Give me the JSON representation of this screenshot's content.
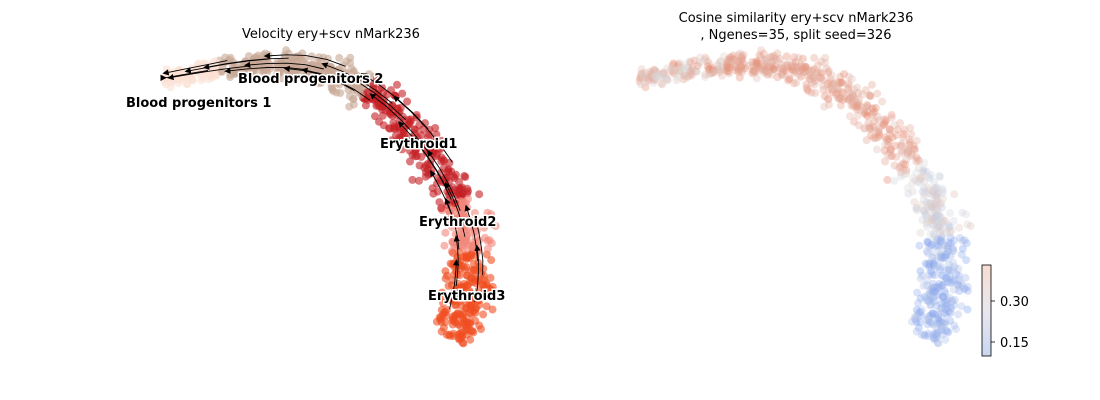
{
  "chart_data": [
    {
      "type": "scatter",
      "subtype": "embedding-velocity-stream",
      "title": "Velocity ery+scv nMark236",
      "axes_visible": false,
      "clusters": [
        {
          "name": "Blood progenitors 1",
          "color": "#fbe1d3"
        },
        {
          "name": "Blood progenitors 2",
          "color": "#c8a896"
        },
        {
          "name": "Erythroid1",
          "color": "#c41f24"
        },
        {
          "name": "Erythroid2",
          "color": "#f2877c"
        },
        {
          "name": "Erythroid3",
          "color": "#f04e21"
        }
      ],
      "stream_direction": "toward Blood progenitors 1"
    },
    {
      "type": "scatter",
      "subtype": "embedding-colored",
      "title": "Cosine similarity ery+scv nMark236\n, Ngenes=35, split seed=326",
      "axes_visible": false,
      "colormap": "coolwarm",
      "colorbar": {
        "ticks": [
          "0.30",
          "0.15"
        ],
        "tick_values": [
          0.3,
          0.15
        ],
        "range": [
          0.12,
          0.34
        ]
      },
      "trend": "high similarity (red) in Blood progenitors 2 / Erythroid1 region, low (blue) in Erythroid3 region"
    }
  ]
}
